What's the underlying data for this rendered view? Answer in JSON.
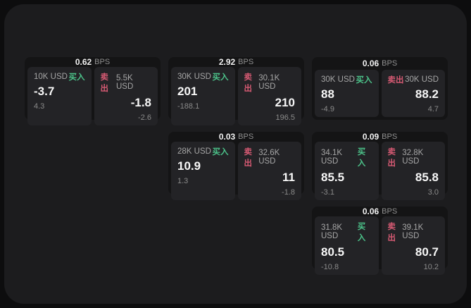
{
  "labels": {
    "buy": "买入",
    "sell": "卖出",
    "bps_unit": "BPS"
  },
  "colors": {
    "buy_green": "#4cc38a",
    "sell_red": "#d65a73",
    "surface": "#1c1c1e",
    "card": "#141415",
    "panel": "#232326"
  },
  "cards": [
    {
      "bps": "0.62",
      "buy": {
        "amount": "10K USD",
        "price": "-3.7",
        "sub": "4.3"
      },
      "sell": {
        "amount": "5.5K USD",
        "price": "-1.8",
        "sub": "-2.6"
      }
    },
    {
      "bps": "2.92",
      "buy": {
        "amount": "30K USD",
        "price": "201",
        "sub": "-188.1"
      },
      "sell": {
        "amount": "30.1K USD",
        "price": "210",
        "sub": "196.5"
      }
    },
    {
      "bps": "0.06",
      "buy": {
        "amount": "30K USD",
        "price": "88",
        "sub": "-4.9"
      },
      "sell": {
        "amount": "30K USD",
        "price": "88.2",
        "sub": "4.7"
      }
    },
    {
      "bps": "0.03",
      "buy": {
        "amount": "28K USD",
        "price": "10.9",
        "sub": "1.3"
      },
      "sell": {
        "amount": "32.6K USD",
        "price": "11",
        "sub": "-1.8"
      }
    },
    {
      "bps": "0.09",
      "buy": {
        "amount": "34.1K USD",
        "price": "85.5",
        "sub": "-3.1"
      },
      "sell": {
        "amount": "32.8K USD",
        "price": "85.8",
        "sub": "3.0"
      }
    },
    {
      "bps": "0.06",
      "buy": {
        "amount": "31.8K USD",
        "price": "80.5",
        "sub": "-10.8"
      },
      "sell": {
        "amount": "39.1K USD",
        "price": "80.7",
        "sub": "10.2"
      }
    }
  ]
}
